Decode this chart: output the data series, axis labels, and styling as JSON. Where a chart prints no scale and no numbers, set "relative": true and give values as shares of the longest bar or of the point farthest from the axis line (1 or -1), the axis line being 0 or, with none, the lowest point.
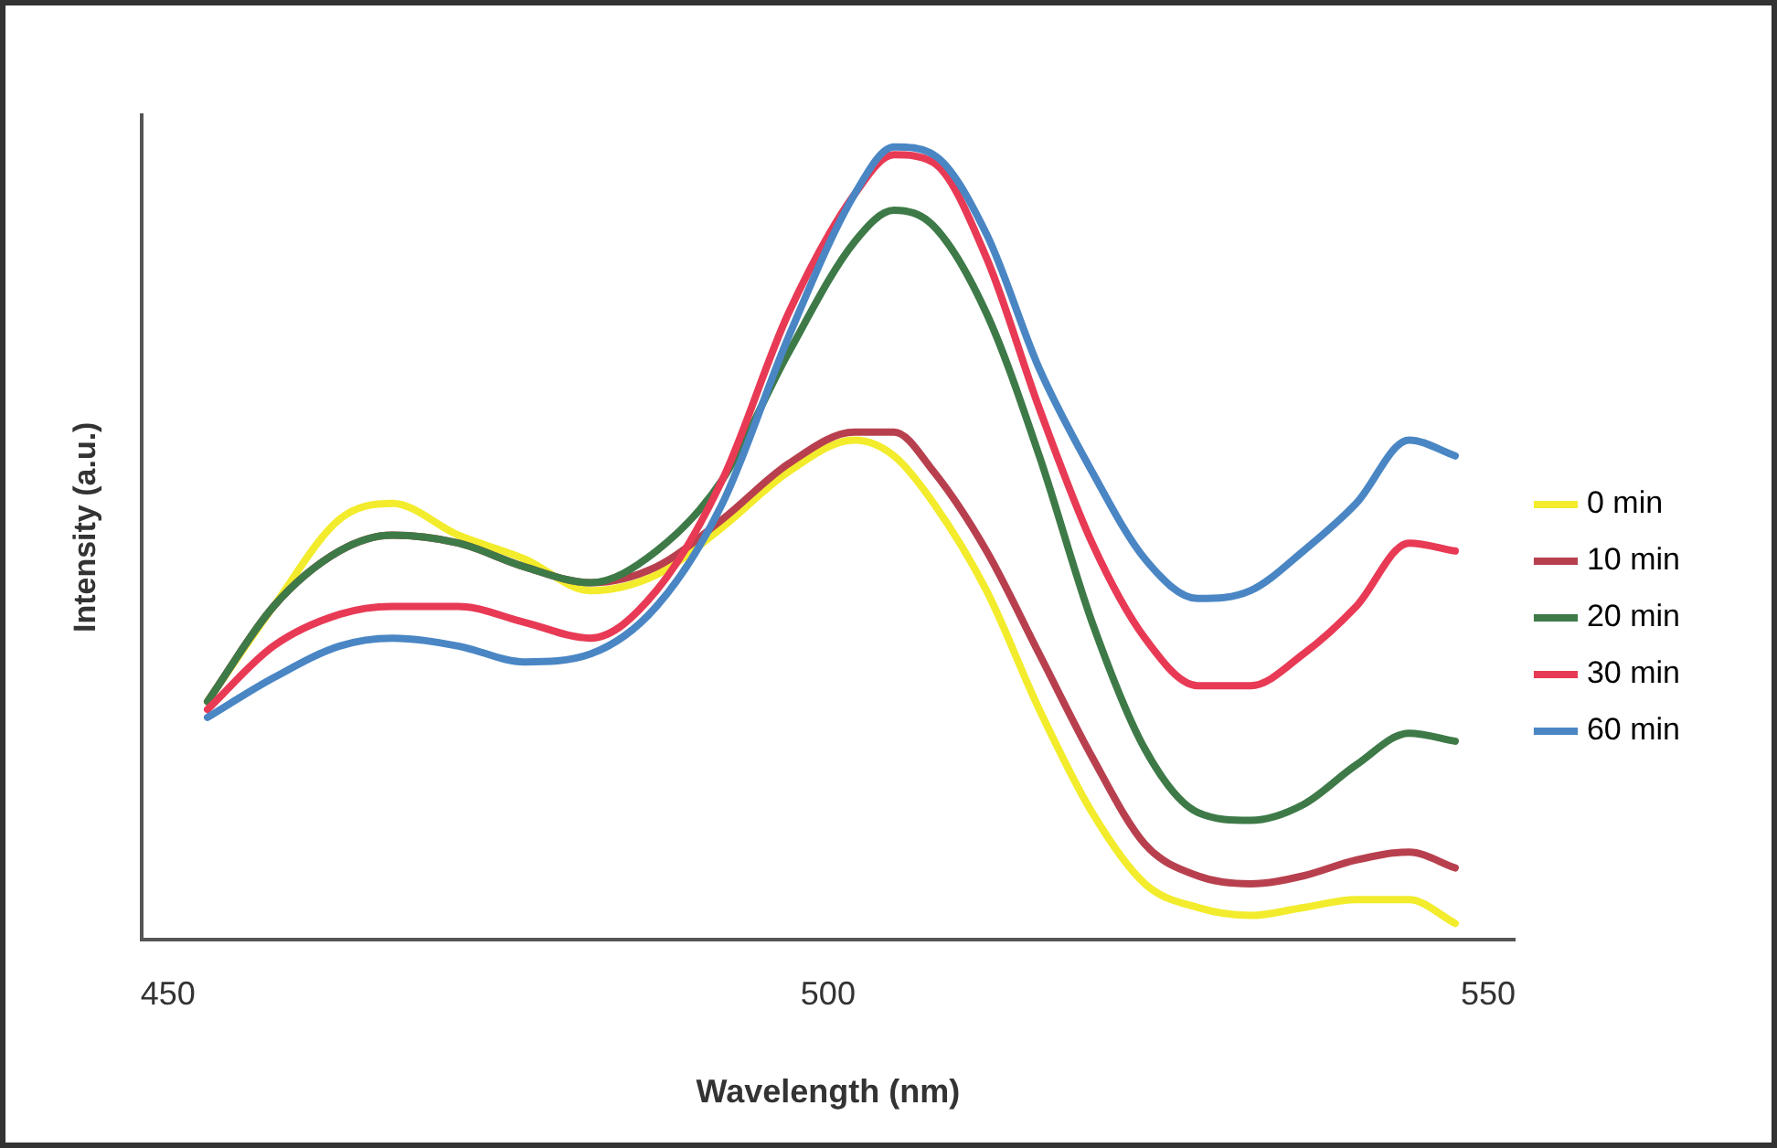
{
  "chart_data": {
    "type": "line",
    "xlabel": "Wavelength (nm)",
    "ylabel": "Intensity (a.u.)",
    "relative": true,
    "x": [
      453,
      458,
      463,
      467,
      472,
      477,
      482,
      487,
      492,
      497,
      502,
      505,
      508,
      512,
      516,
      520,
      524,
      528,
      532,
      536,
      540,
      544,
      547.5
    ],
    "xlim": [
      448,
      552
    ],
    "xticks": [
      450,
      500,
      550
    ],
    "tick_labels": "x",
    "legend": "right",
    "grid": false,
    "marker": "none",
    "line_style": "solid",
    "series": [
      {
        "name": "0 min",
        "color": "#f2ec2c",
        "values": [
          0.3,
          0.42,
          0.53,
          0.55,
          0.51,
          0.48,
          0.44,
          0.46,
          0.52,
          0.59,
          0.63,
          0.61,
          0.55,
          0.44,
          0.29,
          0.16,
          0.07,
          0.04,
          0.03,
          0.04,
          0.05,
          0.05,
          0.02
        ]
      },
      {
        "name": "10 min",
        "color": "#b8404e",
        "values": [
          0.3,
          0.42,
          0.49,
          0.51,
          0.5,
          0.47,
          0.45,
          0.47,
          0.53,
          0.6,
          0.64,
          0.64,
          0.59,
          0.49,
          0.36,
          0.23,
          0.12,
          0.08,
          0.07,
          0.08,
          0.1,
          0.11,
          0.09
        ]
      },
      {
        "name": "20 min",
        "color": "#3e7a48",
        "values": [
          0.3,
          0.42,
          0.49,
          0.51,
          0.5,
          0.47,
          0.45,
          0.49,
          0.58,
          0.74,
          0.88,
          0.92,
          0.9,
          0.79,
          0.61,
          0.4,
          0.24,
          0.16,
          0.15,
          0.17,
          0.22,
          0.26,
          0.25
        ]
      },
      {
        "name": "30 min",
        "color": "#e83a55",
        "values": [
          0.29,
          0.37,
          0.41,
          0.42,
          0.42,
          0.4,
          0.38,
          0.44,
          0.58,
          0.79,
          0.94,
          0.99,
          0.98,
          0.86,
          0.67,
          0.5,
          0.38,
          0.32,
          0.32,
          0.36,
          0.42,
          0.5,
          0.49
        ]
      },
      {
        "name": "60 min",
        "color": "#4a86c4",
        "values": [
          0.28,
          0.33,
          0.37,
          0.38,
          0.37,
          0.35,
          0.36,
          0.42,
          0.55,
          0.76,
          0.94,
          1,
          0.99,
          0.89,
          0.72,
          0.59,
          0.48,
          0.43,
          0.44,
          0.49,
          0.55,
          0.63,
          0.61
        ]
      }
    ]
  }
}
